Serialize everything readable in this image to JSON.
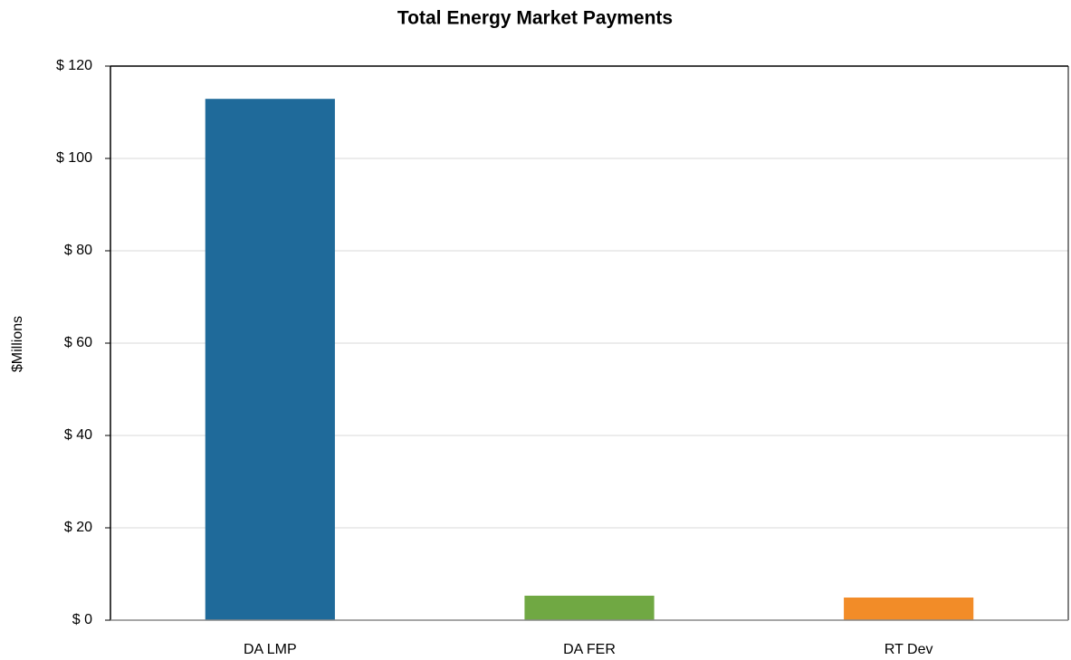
{
  "chart_data": {
    "type": "bar",
    "title": "Total Energy Market Payments",
    "y_label": "$Millions",
    "categories": [
      "DA LMP",
      "DA FER",
      "RT Dev"
    ],
    "values": [
      112.9,
      5.3,
      4.9
    ],
    "colors": [
      "#1f6a9a",
      "#70a843",
      "#f28c28"
    ],
    "ylim": [
      0,
      120
    ],
    "yticks": [
      {
        "value": 0,
        "label": "$ 0"
      },
      {
        "value": 20,
        "label": "$ 20"
      },
      {
        "value": 40,
        "label": "$ 40"
      },
      {
        "value": 60,
        "label": "$ 60"
      },
      {
        "value": 80,
        "label": "$ 80"
      },
      {
        "value": 100,
        "label": "$ 100"
      },
      {
        "value": 120,
        "label": "$ 120"
      }
    ],
    "grid": true
  }
}
